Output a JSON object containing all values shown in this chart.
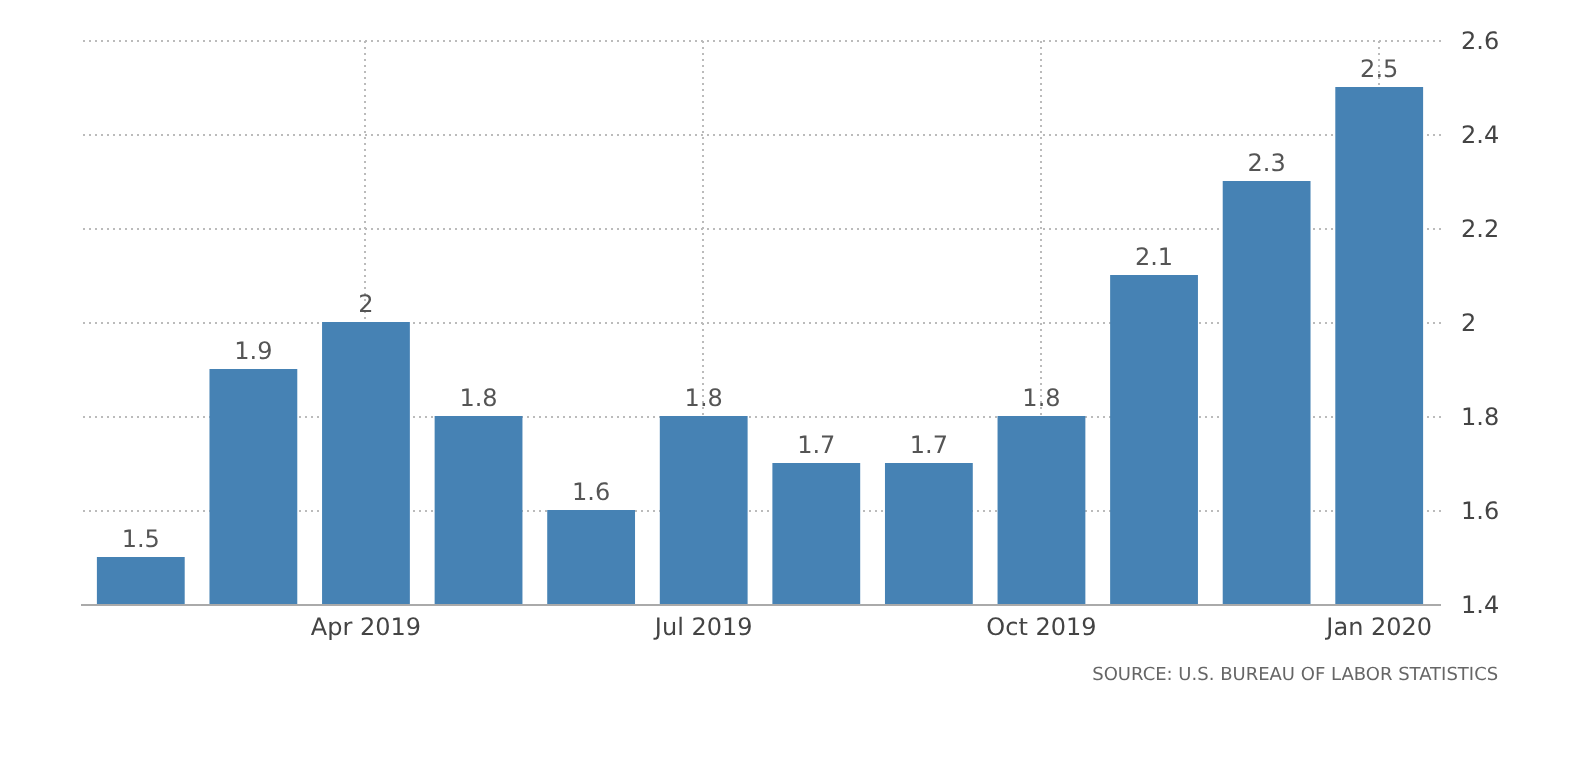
{
  "chart_data": {
    "type": "bar",
    "categories": [
      null,
      null,
      "Apr 2019",
      null,
      null,
      "Jul 2019",
      null,
      null,
      "Oct 2019",
      null,
      null,
      "Jan 2020"
    ],
    "values": [
      1.5,
      1.9,
      2,
      1.8,
      1.6,
      1.8,
      1.7,
      1.7,
      1.8,
      2.1,
      2.3,
      2.5
    ],
    "color": "#4682b4",
    "ylim": [
      1.4,
      2.6
    ],
    "yticks": [
      1.4,
      1.6,
      1.8,
      2,
      2.2,
      2.4,
      2.6
    ],
    "grid": true,
    "data_labels": true,
    "annotations": [
      "SOURCE: U.S. BUREAU OF LABOR STATISTICS"
    ]
  }
}
